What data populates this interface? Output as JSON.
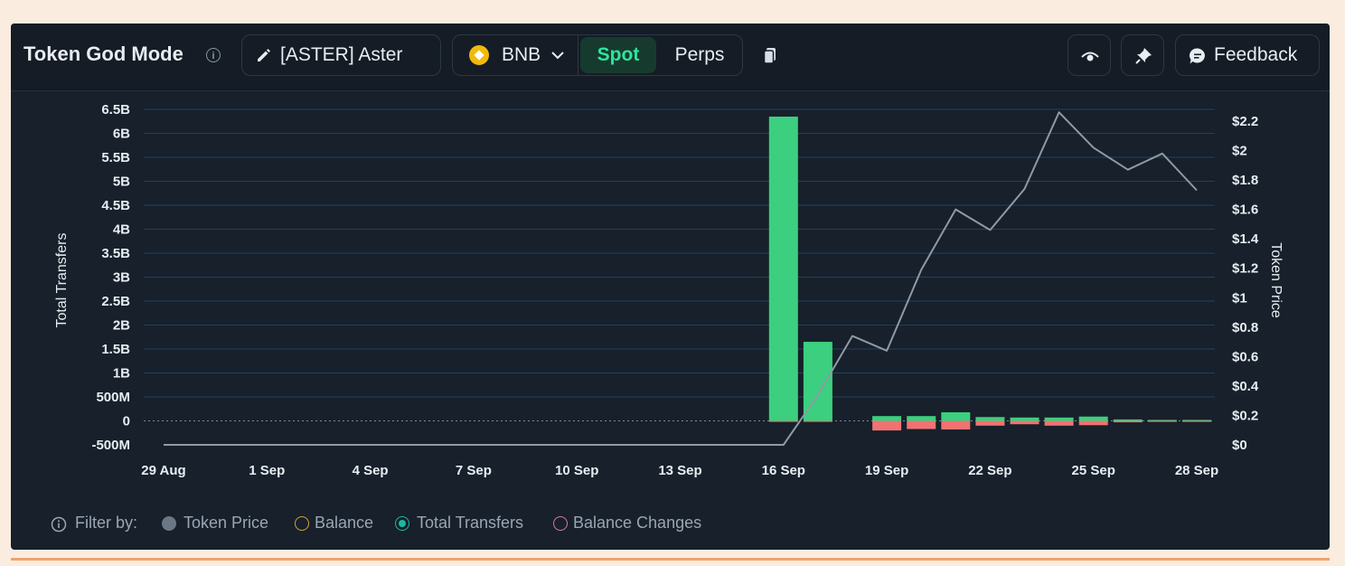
{
  "header": {
    "title": "Token God Mode",
    "token_label": "[ASTER] Aster",
    "chain_label": "BNB",
    "tabs": [
      "Spot",
      "Perps"
    ],
    "active_tab": "Spot",
    "feedback_label": "Feedback"
  },
  "colors": {
    "inflow": "#3ccf7f",
    "outflow": "#f07272",
    "price_line": "#8f9aa6",
    "grid": "#24415c",
    "accent": "#2ee59d"
  },
  "icons": [
    "info-icon",
    "pencil-icon",
    "bnb-coin-icon",
    "chevron-down-icon",
    "copy-icon",
    "eye-icon",
    "pin-icon",
    "chat-bubble-icon"
  ],
  "chart_data": {
    "type": "bar",
    "xlabel": "",
    "ylabel": "Total Transfers",
    "y2label": "Token Price",
    "ylim": [
      -500000000,
      6500000000
    ],
    "y2lim": [
      0,
      2.2
    ],
    "yticks": [
      "6.5B",
      "6B",
      "5.5B",
      "5B",
      "4.5B",
      "4B",
      "3.5B",
      "3B",
      "2.5B",
      "2B",
      "1.5B",
      "1B",
      "500M",
      "0",
      "-500M"
    ],
    "y2ticks": [
      "$2.2",
      "$2",
      "$1.8",
      "$1.6",
      "$1.4",
      "$1.2",
      "$1",
      "$0.8",
      "$0.6",
      "$0.4",
      "$0.2",
      "$0"
    ],
    "xticks": [
      "29 Aug",
      "1 Sep",
      "4 Sep",
      "7 Sep",
      "10 Sep",
      "13 Sep",
      "16 Sep",
      "19 Sep",
      "22 Sep",
      "25 Sep",
      "28 Sep"
    ],
    "dates": [
      "29 Aug",
      "30 Aug",
      "31 Aug",
      "1 Sep",
      "2 Sep",
      "3 Sep",
      "4 Sep",
      "5 Sep",
      "6 Sep",
      "7 Sep",
      "8 Sep",
      "9 Sep",
      "10 Sep",
      "11 Sep",
      "12 Sep",
      "13 Sep",
      "14 Sep",
      "15 Sep",
      "16 Sep",
      "17 Sep",
      "18 Sep",
      "19 Sep",
      "20 Sep",
      "21 Sep",
      "22 Sep",
      "23 Sep",
      "24 Sep",
      "25 Sep",
      "26 Sep",
      "27 Sep",
      "28 Sep"
    ],
    "series": [
      {
        "name": "Token Price",
        "type": "line",
        "axis": "right",
        "values": [
          0,
          0,
          0,
          0,
          0,
          0,
          0,
          0,
          0,
          0,
          0,
          0,
          0,
          0,
          0,
          0,
          0,
          0,
          0,
          0.34,
          0.74,
          0.64,
          1.19,
          1.6,
          1.46,
          1.74,
          2.26,
          2.02,
          1.87,
          1.98,
          1.73
        ]
      },
      {
        "name": "Total Transfers",
        "type": "bar",
        "axis": "left",
        "inflow": [
          0,
          0,
          0,
          0,
          0,
          0,
          0,
          0,
          0,
          0,
          0,
          0,
          0,
          0,
          0,
          0,
          0,
          0,
          6350000000,
          1650000000,
          0,
          100000000,
          100000000,
          180000000,
          80000000,
          70000000,
          70000000,
          90000000,
          30000000,
          20000000,
          20000000
        ],
        "outflow": [
          0,
          0,
          0,
          0,
          0,
          0,
          0,
          0,
          0,
          0,
          0,
          0,
          0,
          0,
          0,
          0,
          0,
          0,
          -20000000,
          -20000000,
          0,
          -200000000,
          -170000000,
          -180000000,
          -100000000,
          -70000000,
          -100000000,
          -90000000,
          -30000000,
          -20000000,
          -20000000
        ]
      }
    ],
    "grid": true,
    "legend": "bottom-left"
  },
  "filter": {
    "label": "Filter by:",
    "items": [
      {
        "label": "Token Price",
        "state": "filled",
        "color": "#6b7784"
      },
      {
        "label": "Balance",
        "state": "outline",
        "color": "#d4a630"
      },
      {
        "label": "Total Transfers",
        "state": "selected",
        "color": "#1fb8a0"
      },
      {
        "label": "Balance Changes",
        "state": "outline",
        "color": "#d27aa8"
      }
    ]
  }
}
